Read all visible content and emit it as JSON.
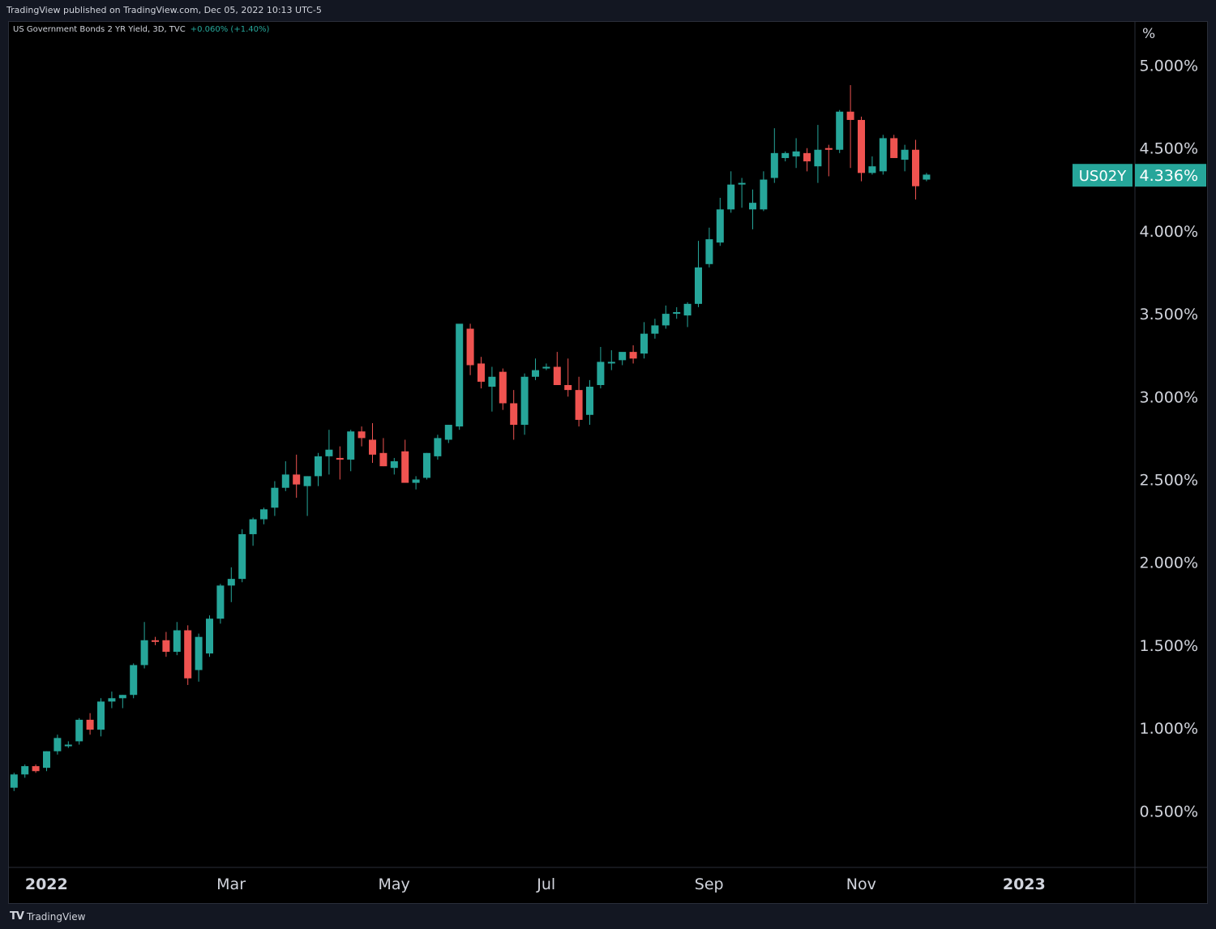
{
  "header": {
    "publish_text": "TradingView published on TradingView.com, Dec 05, 2022 10:13 UTC-5"
  },
  "legend": {
    "symbol": "US Government Bonds 2 YR Yield, 3D, TVC",
    "change": "+0.060% (+1.40%)"
  },
  "footer": {
    "brand": "TradingView",
    "logo_mark": "TV"
  },
  "colors": {
    "up": "#26a69a",
    "down": "#ef5350",
    "background": "#000000",
    "axis_text": "#d1d4dc"
  },
  "chart_data": {
    "type": "candlestick",
    "title": "",
    "ylabel": "%",
    "ylim": [
      0.1,
      5.3
    ],
    "y_ticks": [
      {
        "value": 5.0,
        "label": "5.000%"
      },
      {
        "value": 4.5,
        "label": "4.500%"
      },
      {
        "value": 4.0,
        "label": "4.000%"
      },
      {
        "value": 3.5,
        "label": "3.500%"
      },
      {
        "value": 3.0,
        "label": "3.000%"
      },
      {
        "value": 2.5,
        "label": "2.500%"
      },
      {
        "value": 2.0,
        "label": "2.000%"
      },
      {
        "value": 1.5,
        "label": "1.500%"
      },
      {
        "value": 1.0,
        "label": "1.000%"
      },
      {
        "value": 0.5,
        "label": "0.500%"
      }
    ],
    "x_ticks": [
      {
        "label": "2022",
        "bar": 0
      },
      {
        "label": "Mar",
        "bar": 17
      },
      {
        "label": "May",
        "bar": 32
      },
      {
        "label": "Jul",
        "bar": 46
      },
      {
        "label": "Sep",
        "bar": 61
      },
      {
        "label": "Nov",
        "bar": 75
      },
      {
        "label": "2023",
        "bar": 90
      }
    ],
    "last_price": {
      "symbol": "US02Y",
      "value": 4.336,
      "label": "4.336%"
    },
    "bars": [
      [
        0.64,
        0.73,
        0.62,
        0.72
      ],
      [
        0.72,
        0.78,
        0.7,
        0.77
      ],
      [
        0.77,
        0.78,
        0.73,
        0.74
      ],
      [
        0.76,
        0.86,
        0.74,
        0.86
      ],
      [
        0.86,
        0.96,
        0.84,
        0.94
      ],
      [
        0.9,
        0.92,
        0.88,
        0.9
      ],
      [
        0.92,
        1.06,
        0.9,
        1.05
      ],
      [
        1.05,
        1.09,
        0.96,
        0.99
      ],
      [
        0.99,
        1.18,
        0.95,
        1.16
      ],
      [
        1.16,
        1.22,
        1.12,
        1.18
      ],
      [
        1.18,
        1.2,
        1.12,
        1.2
      ],
      [
        1.2,
        1.39,
        1.18,
        1.38
      ],
      [
        1.38,
        1.64,
        1.36,
        1.53
      ],
      [
        1.53,
        1.55,
        1.5,
        1.52
      ],
      [
        1.53,
        1.58,
        1.43,
        1.46
      ],
      [
        1.46,
        1.64,
        1.44,
        1.59
      ],
      [
        1.59,
        1.62,
        1.26,
        1.3
      ],
      [
        1.35,
        1.57,
        1.28,
        1.55
      ],
      [
        1.45,
        1.68,
        1.43,
        1.66
      ],
      [
        1.66,
        1.87,
        1.63,
        1.86
      ],
      [
        1.86,
        1.97,
        1.76,
        1.9
      ],
      [
        1.9,
        2.2,
        1.88,
        2.17
      ],
      [
        2.17,
        2.27,
        2.1,
        2.26
      ],
      [
        2.26,
        2.33,
        2.23,
        2.32
      ],
      [
        2.33,
        2.49,
        2.28,
        2.45
      ],
      [
        2.45,
        2.61,
        2.43,
        2.53
      ],
      [
        2.53,
        2.65,
        2.39,
        2.47
      ],
      [
        2.46,
        2.52,
        2.28,
        2.52
      ],
      [
        2.52,
        2.66,
        2.46,
        2.64
      ],
      [
        2.64,
        2.8,
        2.53,
        2.68
      ],
      [
        2.63,
        2.7,
        2.5,
        2.62
      ],
      [
        2.62,
        2.8,
        2.55,
        2.79
      ],
      [
        2.79,
        2.82,
        2.7,
        2.75
      ],
      [
        2.74,
        2.84,
        2.6,
        2.65
      ],
      [
        2.66,
        2.75,
        2.58,
        2.58
      ],
      [
        2.57,
        2.63,
        2.53,
        2.61
      ],
      [
        2.67,
        2.74,
        2.5,
        2.48
      ],
      [
        2.48,
        2.52,
        2.44,
        2.5
      ],
      [
        2.51,
        2.66,
        2.5,
        2.66
      ],
      [
        2.64,
        2.77,
        2.62,
        2.75
      ],
      [
        2.74,
        2.83,
        2.72,
        2.83
      ],
      [
        2.82,
        3.41,
        2.8,
        3.44
      ],
      [
        3.41,
        3.44,
        3.13,
        3.19
      ],
      [
        3.2,
        3.24,
        3.05,
        3.09
      ],
      [
        3.06,
        3.18,
        2.91,
        3.12
      ],
      [
        3.15,
        3.17,
        2.92,
        2.96
      ],
      [
        2.96,
        3.04,
        2.74,
        2.83
      ],
      [
        2.83,
        3.14,
        2.77,
        3.12
      ],
      [
        3.12,
        3.23,
        3.1,
        3.16
      ],
      [
        3.17,
        3.2,
        3.16,
        3.18
      ],
      [
        3.18,
        3.27,
        3.14,
        3.07
      ],
      [
        3.07,
        3.23,
        3.0,
        3.04
      ],
      [
        3.04,
        3.12,
        2.82,
        2.86
      ],
      [
        2.89,
        3.1,
        2.83,
        3.06
      ],
      [
        3.07,
        3.3,
        3.05,
        3.21
      ],
      [
        3.21,
        3.28,
        3.16,
        3.21
      ],
      [
        3.22,
        3.25,
        3.19,
        3.27
      ],
      [
        3.27,
        3.31,
        3.2,
        3.23
      ],
      [
        3.26,
        3.45,
        3.23,
        3.38
      ],
      [
        3.38,
        3.47,
        3.35,
        3.43
      ],
      [
        3.43,
        3.55,
        3.41,
        3.5
      ],
      [
        3.5,
        3.54,
        3.47,
        3.51
      ],
      [
        3.49,
        3.57,
        3.42,
        3.56
      ],
      [
        3.56,
        3.94,
        3.54,
        3.78
      ],
      [
        3.8,
        4.02,
        3.78,
        3.95
      ],
      [
        3.93,
        4.2,
        3.91,
        4.13
      ],
      [
        4.13,
        4.36,
        4.11,
        4.28
      ],
      [
        4.29,
        4.32,
        4.14,
        4.29
      ],
      [
        4.13,
        4.25,
        4.01,
        4.17
      ],
      [
        4.13,
        4.36,
        4.12,
        4.31
      ],
      [
        4.32,
        4.62,
        4.29,
        4.47
      ],
      [
        4.44,
        4.48,
        4.42,
        4.47
      ],
      [
        4.45,
        4.56,
        4.38,
        4.48
      ],
      [
        4.47,
        4.5,
        4.36,
        4.42
      ],
      [
        4.39,
        4.64,
        4.29,
        4.49
      ],
      [
        4.5,
        4.52,
        4.33,
        4.49
      ],
      [
        4.49,
        4.73,
        4.47,
        4.72
      ],
      [
        4.72,
        4.88,
        4.38,
        4.67
      ],
      [
        4.67,
        4.69,
        4.3,
        4.35
      ],
      [
        4.35,
        4.45,
        4.34,
        4.39
      ],
      [
        4.36,
        4.58,
        4.34,
        4.56
      ],
      [
        4.56,
        4.58,
        4.44,
        4.44
      ],
      [
        4.43,
        4.52,
        4.36,
        4.49
      ],
      [
        4.49,
        4.55,
        4.19,
        4.27
      ],
      [
        4.31,
        4.35,
        4.3,
        4.34
      ]
    ]
  }
}
